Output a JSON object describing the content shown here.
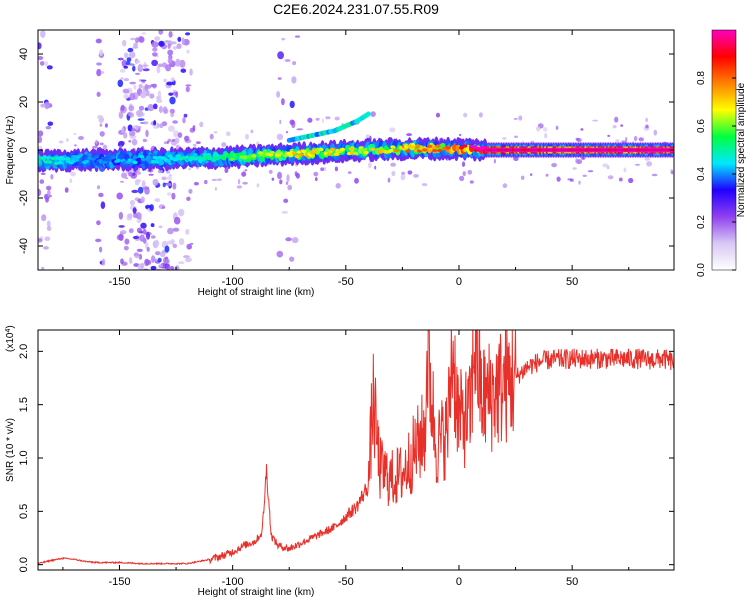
{
  "title": "C2E6.2024.231.07.55.R09",
  "chart_data": [
    {
      "type": "heatmap",
      "xlabel": "Height of straight line (km)",
      "ylabel": "Frequency (Hz)",
      "xlim": [
        -186,
        95
      ],
      "ylim": [
        -50,
        50
      ],
      "xticks": [
        -150,
        -100,
        -50,
        0,
        50
      ],
      "yticks": [
        -40,
        -20,
        0,
        20,
        40
      ],
      "colorbar": {
        "label": "Normalized spectral amplitude",
        "range": [
          0.0,
          1.0
        ],
        "ticks": [
          0.0,
          0.2,
          0.4,
          0.6,
          0.8
        ],
        "colors": [
          "#ffffff",
          "#d8c8f4",
          "#9040f0",
          "#2000ff",
          "#00e8ff",
          "#00ff40",
          "#ffff00",
          "#ff8000",
          "#ff0000",
          "#ff00c0"
        ]
      },
      "ridge": {
        "x": [
          -186,
          -160,
          -140,
          -120,
          -100,
          -80,
          -60,
          -40,
          -20,
          0,
          12,
          95
        ],
        "freq": [
          -4.5,
          -4.0,
          -4.0,
          -3.5,
          -3.0,
          -2.0,
          -1.0,
          0.0,
          0.5,
          0.5,
          0.0,
          0.0
        ],
        "amplitude": [
          0.45,
          0.3,
          0.35,
          0.4,
          0.5,
          0.6,
          0.65,
          0.6,
          0.7,
          0.8,
          0.9,
          0.95
        ]
      },
      "secondary_ridge": {
        "x": [
          -75,
          -65,
          -55,
          -45,
          -40
        ],
        "freq": [
          4,
          6,
          8,
          12,
          15
        ]
      }
    },
    {
      "type": "line",
      "xlabel": "Height of straight line (km)",
      "ylabel": "SNR (10 * v/v)",
      "y_multiplier": "(x10^4)",
      "xlim": [
        -186,
        95
      ],
      "ylim": [
        -0.05,
        2.2
      ],
      "xticks": [
        -150,
        -100,
        -50,
        0,
        50
      ],
      "yticks": [
        0.0,
        0.5,
        1.0,
        1.5,
        2.0
      ],
      "color": "#e8302a",
      "series": [
        {
          "x": [
            -186,
            -180,
            -175,
            -170,
            -165,
            -160,
            -150,
            -140,
            -130,
            -120,
            -110,
            -105,
            -100,
            -95,
            -90,
            -87,
            -85,
            -83,
            -80,
            -75,
            -70,
            -65,
            -60,
            -55,
            -50,
            -45,
            -40,
            -38,
            -35,
            -30,
            -25,
            -20,
            -15,
            -14,
            -10,
            -5,
            -3,
            0,
            5,
            7,
            10,
            15,
            20,
            25,
            30,
            35,
            40,
            50,
            60,
            70,
            80,
            85,
            90,
            95
          ],
          "values": [
            0.01,
            0.04,
            0.06,
            0.05,
            0.03,
            0.02,
            0.02,
            0.01,
            0.01,
            0.01,
            0.05,
            0.08,
            0.12,
            0.18,
            0.22,
            0.3,
            0.9,
            0.28,
            0.18,
            0.15,
            0.2,
            0.25,
            0.3,
            0.35,
            0.45,
            0.55,
            0.75,
            1.55,
            0.9,
            0.8,
            0.85,
            1.05,
            1.25,
            2.0,
            1.1,
            1.25,
            2.05,
            1.35,
            1.4,
            2.15,
            1.55,
            1.6,
            1.7,
            1.75,
            1.85,
            1.9,
            1.92,
            1.93,
            1.93,
            1.93,
            1.93,
            1.92,
            1.93,
            1.9
          ]
        }
      ]
    }
  ]
}
